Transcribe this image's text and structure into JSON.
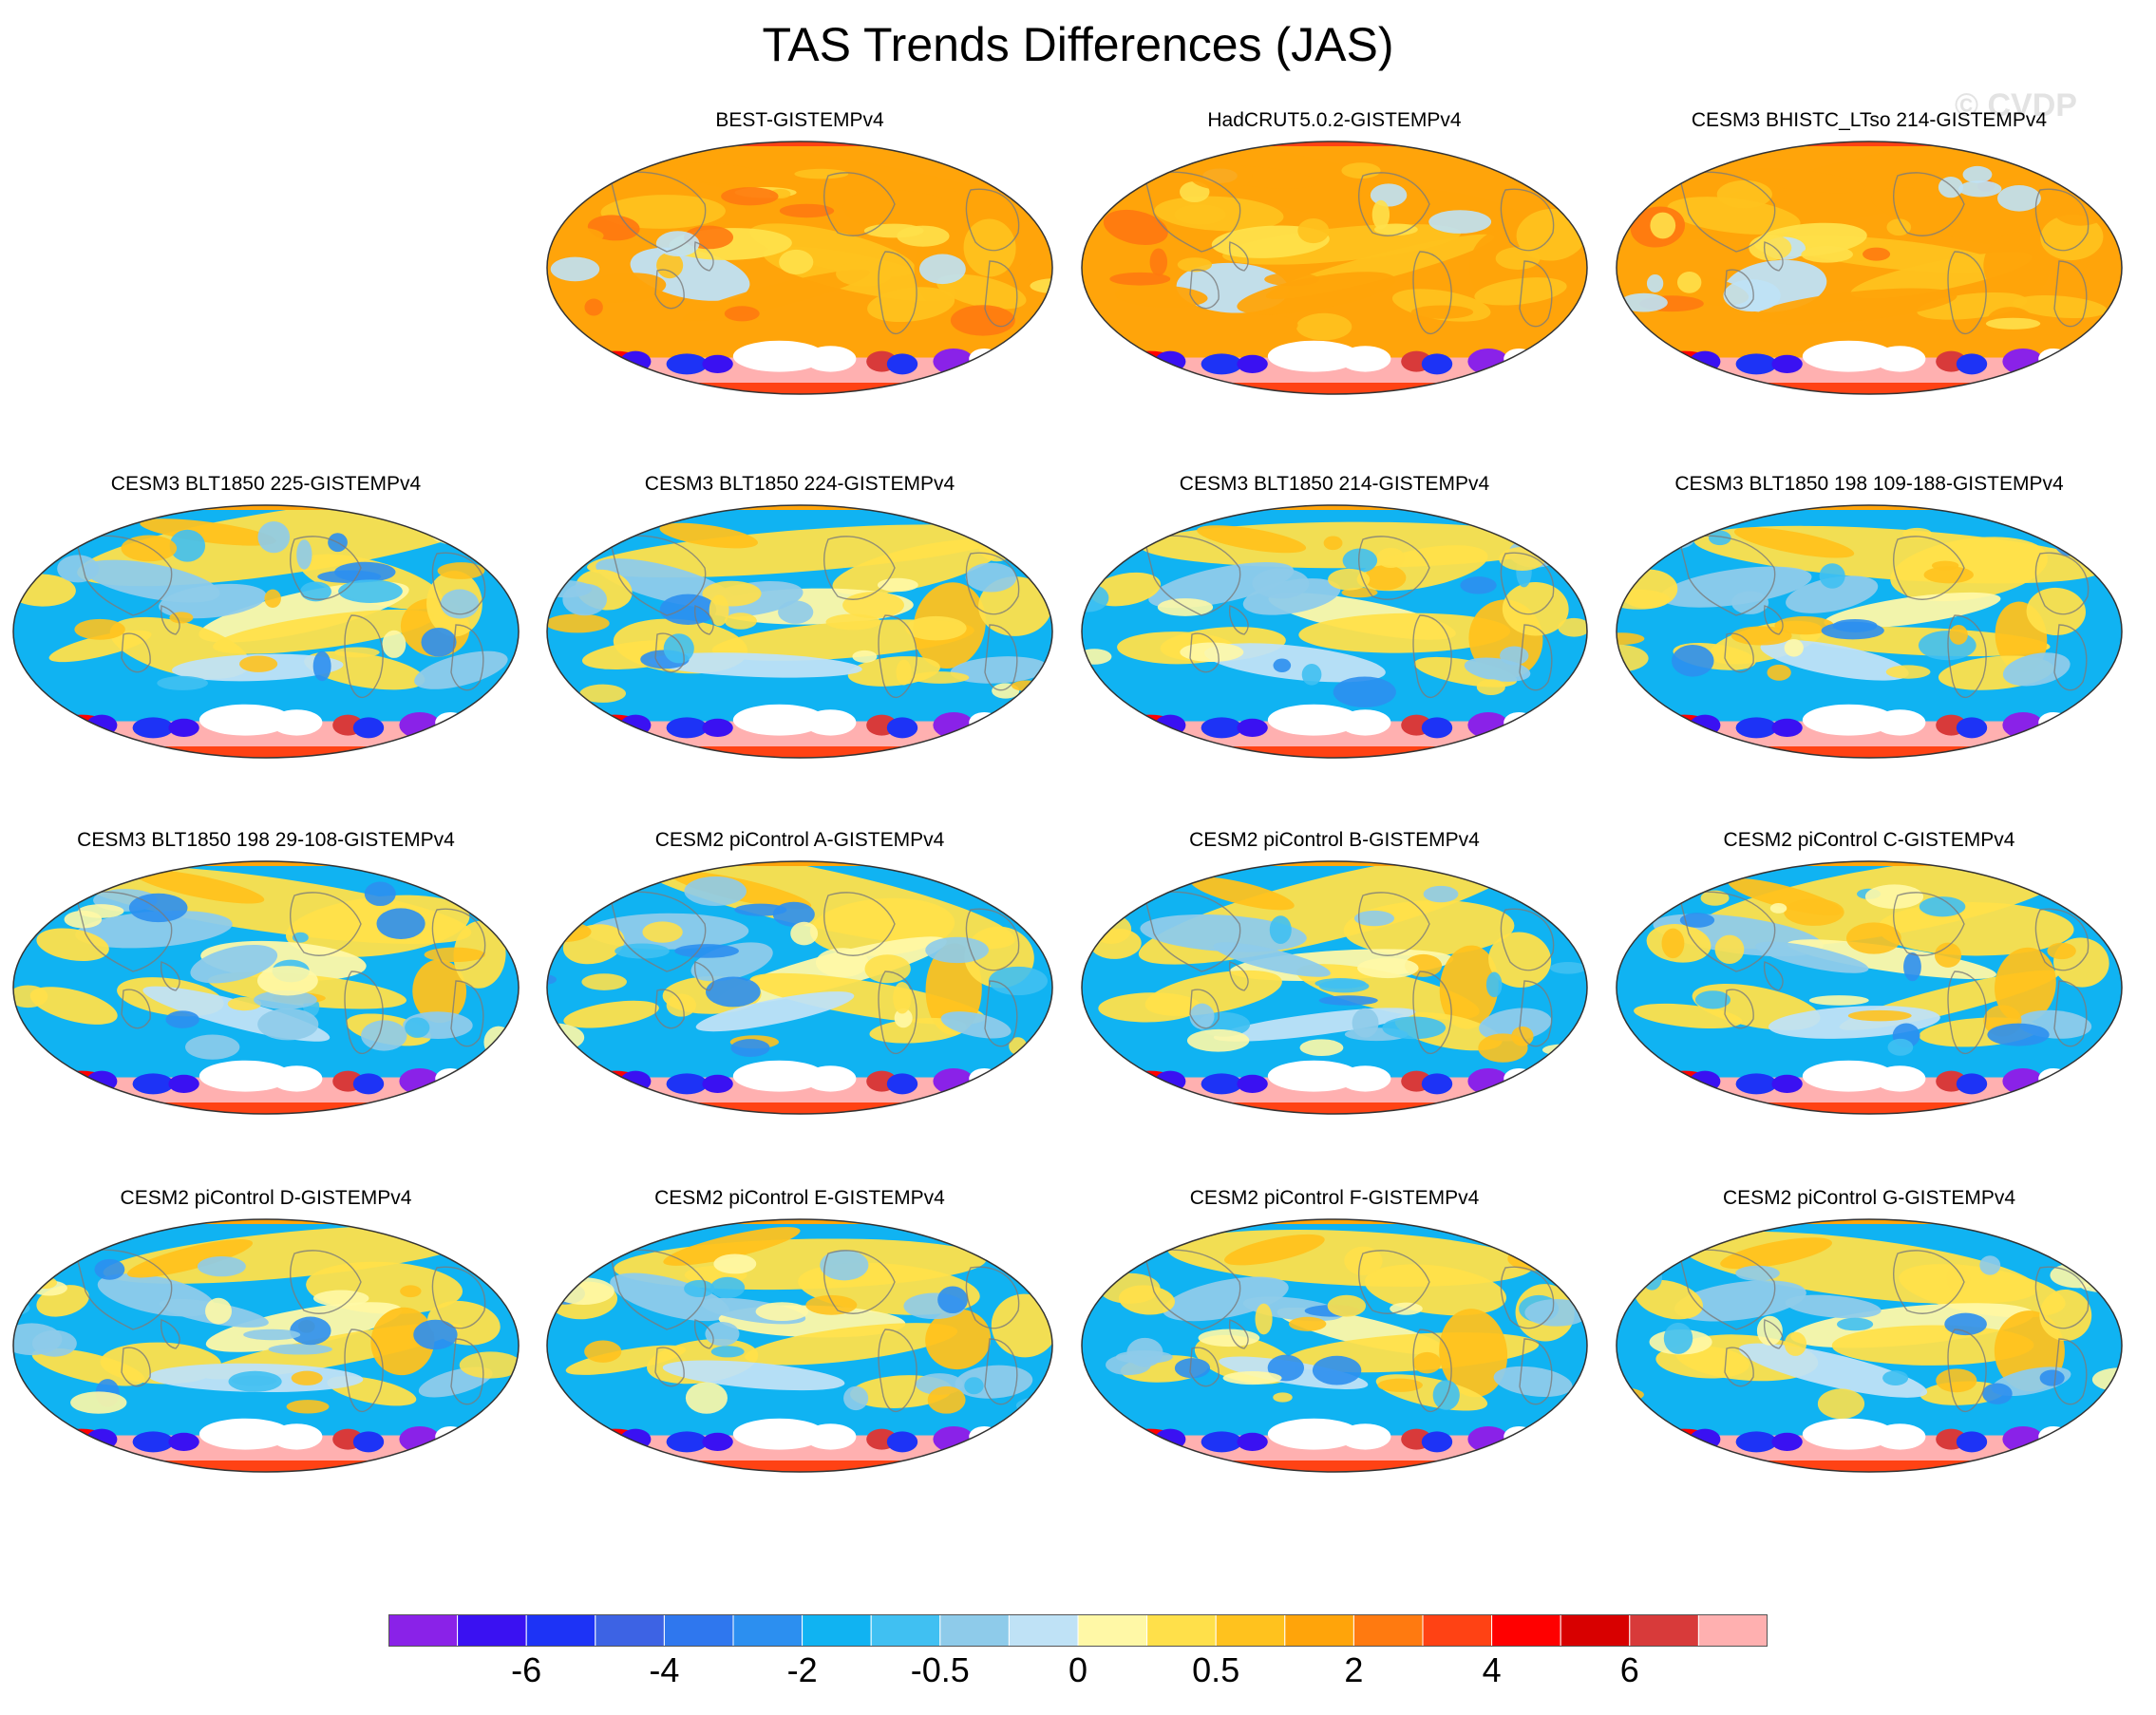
{
  "title": "TAS Trends Differences (JAS)",
  "watermark": "© CVDP",
  "chart_data": {
    "type": "heatmap",
    "title": "TAS Trends Differences (JAS)",
    "projection": "Robinson-like global maps, Pacific-centered",
    "panels": [
      {
        "name": "BEST-GISTEMPv4",
        "row": 0,
        "col": 1,
        "regime": "warm"
      },
      {
        "name": "HadCRUT5.0.2-GISTEMPv4",
        "row": 0,
        "col": 2,
        "regime": "warm"
      },
      {
        "name": "CESM3 BHISTC_LTso 214-GISTEMPv4",
        "row": 0,
        "col": 3,
        "regime": "warm"
      },
      {
        "name": "CESM3 BLT1850 225-GISTEMPv4",
        "row": 1,
        "col": 0,
        "regime": "cool"
      },
      {
        "name": "CESM3 BLT1850 224-GISTEMPv4",
        "row": 1,
        "col": 1,
        "regime": "cool"
      },
      {
        "name": "CESM3 BLT1850 214-GISTEMPv4",
        "row": 1,
        "col": 2,
        "regime": "cool"
      },
      {
        "name": "CESM3 BLT1850 198 109-188-GISTEMPv4",
        "row": 1,
        "col": 3,
        "regime": "cool"
      },
      {
        "name": "CESM3 BLT1850 198 29-108-GISTEMPv4",
        "row": 2,
        "col": 0,
        "regime": "cool"
      },
      {
        "name": "CESM2 piControl A-GISTEMPv4",
        "row": 2,
        "col": 1,
        "regime": "cool"
      },
      {
        "name": "CESM2 piControl B-GISTEMPv4",
        "row": 2,
        "col": 2,
        "regime": "cool"
      },
      {
        "name": "CESM2 piControl C-GISTEMPv4",
        "row": 2,
        "col": 3,
        "regime": "cool"
      },
      {
        "name": "CESM2 piControl D-GISTEMPv4",
        "row": 3,
        "col": 0,
        "regime": "cool"
      },
      {
        "name": "CESM2 piControl E-GISTEMPv4",
        "row": 3,
        "col": 1,
        "regime": "cool"
      },
      {
        "name": "CESM2 piControl F-GISTEMPv4",
        "row": 3,
        "col": 2,
        "regime": "cool"
      },
      {
        "name": "CESM2 piControl G-GISTEMPv4",
        "row": 3,
        "col": 3,
        "regime": "cool"
      }
    ],
    "colorbar": {
      "colors": [
        "#8a22e8",
        "#3a11f2",
        "#1d33f6",
        "#3d63e4",
        "#2f77ee",
        "#2c8ff0",
        "#10b3f2",
        "#40c0f2",
        "#8ecbea",
        "#bfe2f6",
        "#fff8a6",
        "#ffe04a",
        "#ffc21e",
        "#ffa40a",
        "#ff7a10",
        "#ff4214",
        "#ff0000",
        "#d80000",
        "#d83a3a",
        "#ffb0b0"
      ],
      "tick_labels": [
        "-6",
        "-4",
        "-2",
        "-0.5",
        "0",
        "0.5",
        "2",
        "4",
        "6"
      ],
      "tick_boundaries": [
        2,
        4,
        6,
        8,
        10,
        12,
        14,
        16,
        18
      ]
    }
  }
}
